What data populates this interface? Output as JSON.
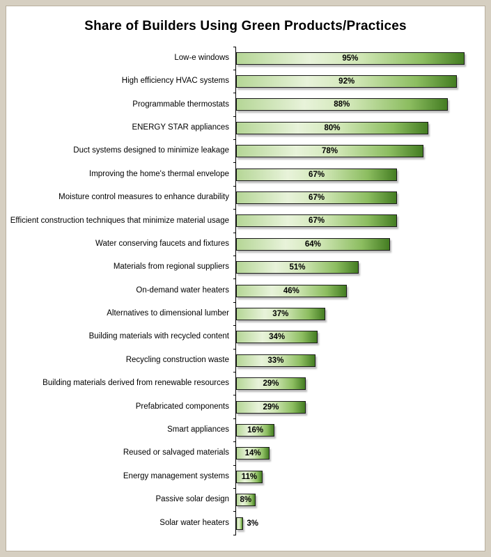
{
  "page": {
    "background_color": "#d6cfc1",
    "panel_color": "#ffffff"
  },
  "chart_data": {
    "type": "bar",
    "orientation": "horizontal",
    "title": "Share of Builders Using Green Products/Practices",
    "unit": "%",
    "xlim": [
      0,
      100
    ],
    "grid": false,
    "legend": false,
    "value_labels": "inside-center-bold, outside for smallest bar",
    "bar_color_light": "#e8f3da",
    "bar_color_dark": "#447d22",
    "bar_border_color": "#1a1a1a",
    "categories": [
      "Low-e windows",
      "High efficiency HVAC systems",
      "Programmable thermostats",
      "ENERGY STAR appliances",
      "Duct systems designed to minimize leakage",
      "Improving the home's thermal envelope",
      "Moisture control measures to enhance durability",
      "Efficient construction techniques that minimize material usage",
      "Water conserving faucets and fixtures",
      "Materials from regional suppliers",
      "On-demand water heaters",
      "Alternatives to dimensional lumber",
      "Building materials with recycled content",
      "Recycling construction waste",
      "Building materials derived from renewable resources",
      "Prefabricated components",
      "Smart appliances",
      "Reused or salvaged materials",
      "Energy management systems",
      "Passive solar design",
      "Solar water heaters"
    ],
    "values": [
      95,
      92,
      88,
      80,
      78,
      67,
      67,
      67,
      64,
      51,
      46,
      37,
      34,
      33,
      29,
      29,
      16,
      14,
      11,
      8,
      3
    ]
  }
}
